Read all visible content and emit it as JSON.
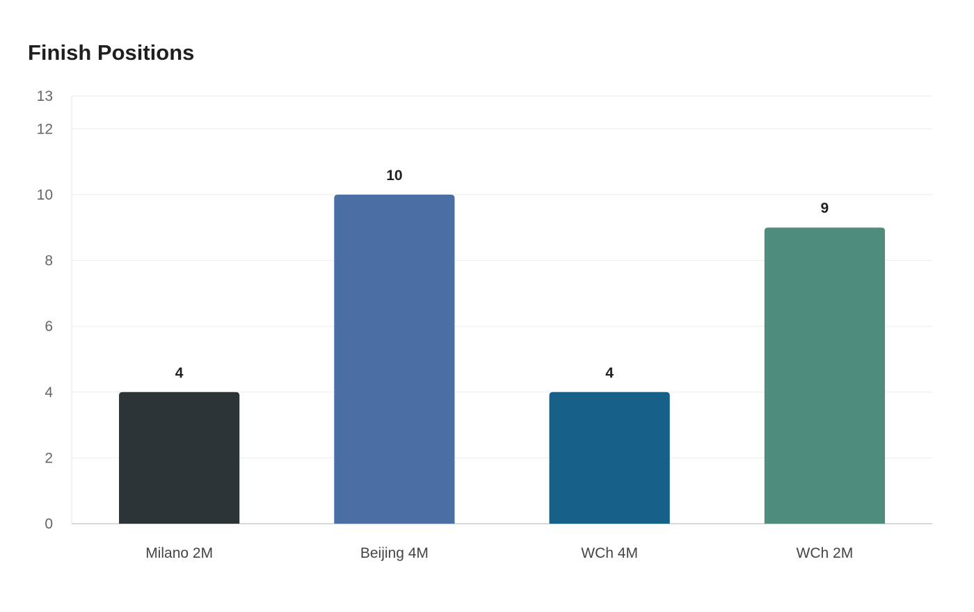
{
  "chart_data": {
    "type": "bar",
    "title": "Finish Positions",
    "xlabel": "",
    "ylabel": "",
    "categories": [
      "Milano 2M",
      "Beijing 4M",
      "WCh 4M",
      "WCh 2M"
    ],
    "values": [
      4,
      10,
      4,
      9
    ],
    "colors": [
      "#2d3436",
      "#4a6fa5",
      "#166088",
      "#4e8d7c"
    ],
    "ylim": [
      0,
      13
    ],
    "yticks": [
      0,
      2,
      4,
      6,
      8,
      10,
      12,
      13
    ],
    "grid": true,
    "legend": "none"
  }
}
